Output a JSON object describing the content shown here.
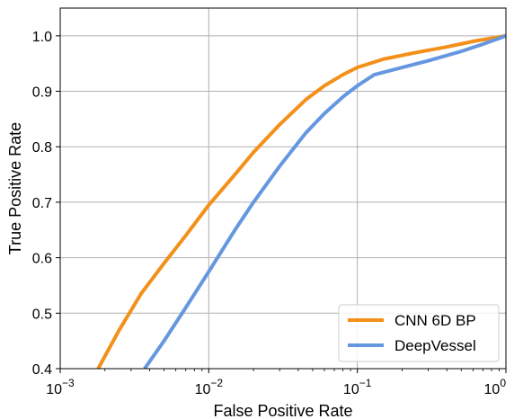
{
  "chart_data": {
    "type": "line",
    "title": "",
    "xlabel": "False Positive Rate",
    "ylabel": "True Positive Rate",
    "x_scale": "log",
    "xlim": [
      0.001,
      1
    ],
    "ylim": [
      0.4,
      1.05
    ],
    "grid": true,
    "legend_position": "bottom-right",
    "x_ticks": [
      {
        "value": 0.001,
        "base": "10",
        "exp": "−3"
      },
      {
        "value": 0.01,
        "base": "10",
        "exp": "−2"
      },
      {
        "value": 0.1,
        "base": "10",
        "exp": "−1"
      },
      {
        "value": 1,
        "base": "10",
        "exp": "0"
      }
    ],
    "y_ticks": [
      {
        "value": 0.4,
        "label": "0.4"
      },
      {
        "value": 0.5,
        "label": "0.5"
      },
      {
        "value": 0.6,
        "label": "0.6"
      },
      {
        "value": 0.7,
        "label": "0.7"
      },
      {
        "value": 0.8,
        "label": "0.8"
      },
      {
        "value": 0.9,
        "label": "0.9"
      },
      {
        "value": 1.0,
        "label": "1.0"
      }
    ],
    "series": [
      {
        "name": "CNN 6D BP",
        "color": "#f39019",
        "points": [
          [
            0.0018,
            0.4
          ],
          [
            0.0025,
            0.47
          ],
          [
            0.0035,
            0.535
          ],
          [
            0.005,
            0.59
          ],
          [
            0.007,
            0.64
          ],
          [
            0.01,
            0.695
          ],
          [
            0.015,
            0.75
          ],
          [
            0.02,
            0.79
          ],
          [
            0.03,
            0.84
          ],
          [
            0.045,
            0.885
          ],
          [
            0.06,
            0.91
          ],
          [
            0.08,
            0.93
          ],
          [
            0.1,
            0.943
          ],
          [
            0.15,
            0.958
          ],
          [
            0.25,
            0.97
          ],
          [
            0.4,
            0.98
          ],
          [
            0.6,
            0.99
          ],
          [
            1.0,
            1.0
          ]
        ]
      },
      {
        "name": "DeepVessel",
        "color": "#6597e0",
        "points": [
          [
            0.0037,
            0.4
          ],
          [
            0.005,
            0.45
          ],
          [
            0.007,
            0.51
          ],
          [
            0.01,
            0.575
          ],
          [
            0.015,
            0.65
          ],
          [
            0.02,
            0.7
          ],
          [
            0.03,
            0.765
          ],
          [
            0.045,
            0.825
          ],
          [
            0.06,
            0.86
          ],
          [
            0.08,
            0.89
          ],
          [
            0.1,
            0.91
          ],
          [
            0.13,
            0.93
          ],
          [
            0.2,
            0.943
          ],
          [
            0.3,
            0.955
          ],
          [
            0.5,
            0.972
          ],
          [
            0.7,
            0.985
          ],
          [
            1.0,
            1.0
          ]
        ]
      }
    ]
  }
}
